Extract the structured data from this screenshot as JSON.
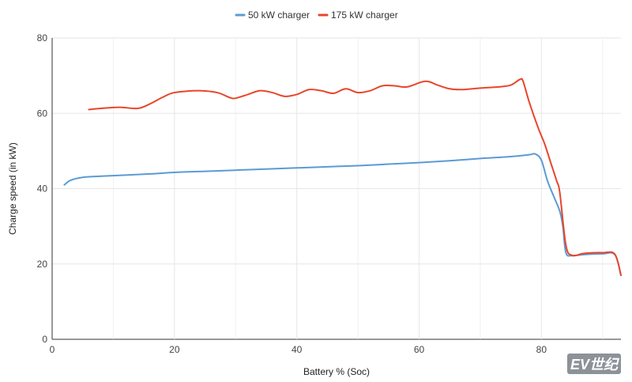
{
  "chart_data": {
    "type": "line",
    "xlabel": "Battery % (Soc)",
    "ylabel": "Charge speed (in kW)",
    "xlim": [
      0,
      93
    ],
    "ylim": [
      0,
      80
    ],
    "x_ticks": [
      0,
      20,
      40,
      60,
      80
    ],
    "y_ticks": [
      0,
      20,
      40,
      60,
      80
    ],
    "grid": true,
    "legend_position": "top-center",
    "series": [
      {
        "name": "50 kW charger",
        "color": "#5b9bd5",
        "points": [
          [
            2,
            41
          ],
          [
            3,
            42.2
          ],
          [
            5,
            43
          ],
          [
            8,
            43.3
          ],
          [
            12,
            43.6
          ],
          [
            16,
            43.9
          ],
          [
            20,
            44.3
          ],
          [
            25,
            44.6
          ],
          [
            30,
            44.9
          ],
          [
            35,
            45.2
          ],
          [
            40,
            45.5
          ],
          [
            45,
            45.8
          ],
          [
            50,
            46.1
          ],
          [
            55,
            46.5
          ],
          [
            60,
            46.9
          ],
          [
            65,
            47.4
          ],
          [
            70,
            48
          ],
          [
            75,
            48.5
          ],
          [
            78,
            49
          ],
          [
            79,
            49.2
          ],
          [
            80,
            47.5
          ],
          [
            81,
            42
          ],
          [
            82,
            38
          ],
          [
            83,
            34
          ],
          [
            83.5,
            30
          ],
          [
            84,
            23
          ],
          [
            85,
            22.2
          ],
          [
            87,
            22.5
          ],
          [
            90,
            22.7
          ],
          [
            92,
            22.5
          ],
          [
            93,
            17
          ]
        ]
      },
      {
        "name": "175 kW charger",
        "color": "#e8462a",
        "points": [
          [
            6,
            61
          ],
          [
            8,
            61.3
          ],
          [
            11,
            61.6
          ],
          [
            14,
            61.3
          ],
          [
            16,
            62.5
          ],
          [
            18,
            64.2
          ],
          [
            20,
            65.5
          ],
          [
            24,
            66
          ],
          [
            27,
            65.5
          ],
          [
            29,
            64.2
          ],
          [
            30,
            64
          ],
          [
            32,
            65
          ],
          [
            34,
            66
          ],
          [
            36,
            65.5
          ],
          [
            38,
            64.5
          ],
          [
            40,
            65
          ],
          [
            42,
            66.3
          ],
          [
            44,
            66
          ],
          [
            46,
            65.3
          ],
          [
            48,
            66.5
          ],
          [
            50,
            65.5
          ],
          [
            52,
            66
          ],
          [
            54,
            67.3
          ],
          [
            56,
            67.3
          ],
          [
            58,
            67
          ],
          [
            61,
            68.5
          ],
          [
            63,
            67.5
          ],
          [
            65,
            66.5
          ],
          [
            67,
            66.3
          ],
          [
            70,
            66.7
          ],
          [
            73,
            67
          ],
          [
            75,
            67.5
          ],
          [
            76.5,
            69
          ],
          [
            77,
            68.5
          ],
          [
            78,
            63
          ],
          [
            79.5,
            56
          ],
          [
            80.5,
            52
          ],
          [
            81.5,
            47
          ],
          [
            82.5,
            42
          ],
          [
            83,
            39
          ],
          [
            84,
            25
          ],
          [
            85,
            22.3
          ],
          [
            87,
            22.8
          ],
          [
            90,
            23
          ],
          [
            92,
            22.6
          ],
          [
            93,
            17
          ]
        ]
      }
    ]
  },
  "watermark": "EV世纪"
}
